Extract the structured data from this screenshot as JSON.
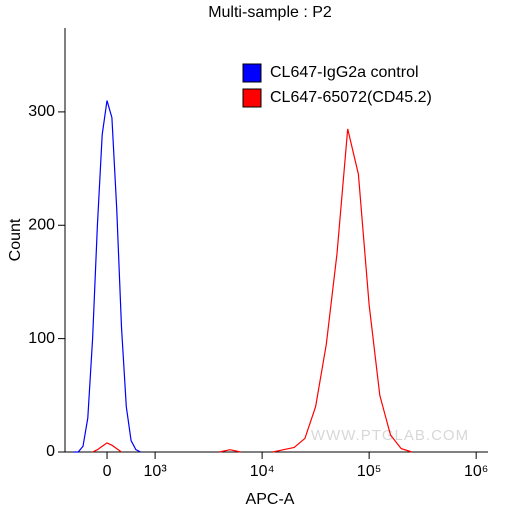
{
  "chart_data": {
    "type": "histogram-line",
    "title": "Multi-sample : P2",
    "x_label": "APC-A",
    "y_label": "Count",
    "xscale": "biexponential",
    "annotation": "WWW.PTGLAB.COM",
    "x": [
      -800,
      -700,
      -600,
      -500,
      -400,
      -300,
      -200,
      -100,
      0,
      100,
      200,
      300,
      400,
      500,
      600,
      700,
      800,
      900,
      1000,
      1259,
      1585,
      1995,
      2512,
      3162,
      3981,
      5012,
      6310,
      7943,
      10000,
      12589,
      15849,
      19953,
      25119,
      31623,
      39811,
      50119,
      63096,
      79433,
      100000,
      125893,
      158489,
      199526,
      251189,
      316228,
      398107,
      501187,
      630957,
      794328,
      1000000
    ],
    "series": [
      {
        "name": "CL647-IgG2a control",
        "color": "#0000ff",
        "values": [
          null,
          0,
          0,
          5,
          30,
          100,
          200,
          280,
          310,
          295,
          215,
          110,
          40,
          10,
          2,
          0,
          null,
          null,
          null,
          null,
          null,
          null,
          null,
          null,
          null,
          null,
          null,
          null,
          null,
          null,
          null,
          null,
          null,
          null,
          null,
          null,
          null,
          null,
          null,
          null,
          null,
          null,
          null,
          null,
          null,
          null,
          null,
          null,
          null
        ]
      },
      {
        "name": "CL647-65072(CD45.2)",
        "color": "#ff0000",
        "values": [
          null,
          null,
          null,
          null,
          null,
          0,
          2,
          5,
          8,
          6,
          3,
          0,
          null,
          null,
          null,
          null,
          null,
          null,
          null,
          null,
          null,
          null,
          null,
          null,
          0,
          2,
          0,
          null,
          null,
          0,
          2,
          4,
          12,
          40,
          95,
          175,
          285,
          245,
          130,
          50,
          15,
          3,
          0,
          null,
          null,
          null,
          null,
          null,
          null
        ]
      }
    ],
    "xlim": [
      -875,
      1290000
    ],
    "xticks": [
      0,
      {
        "value": 1000,
        "label": "10³"
      },
      {
        "value": 10000,
        "label": "10⁴"
      },
      {
        "value": 100000,
        "label": "10⁵"
      },
      {
        "value": 1000000,
        "label": "10⁶"
      }
    ],
    "ylim": [
      0,
      374
    ],
    "yticks": [
      0,
      100,
      200,
      300
    ],
    "legend": "upper right"
  }
}
